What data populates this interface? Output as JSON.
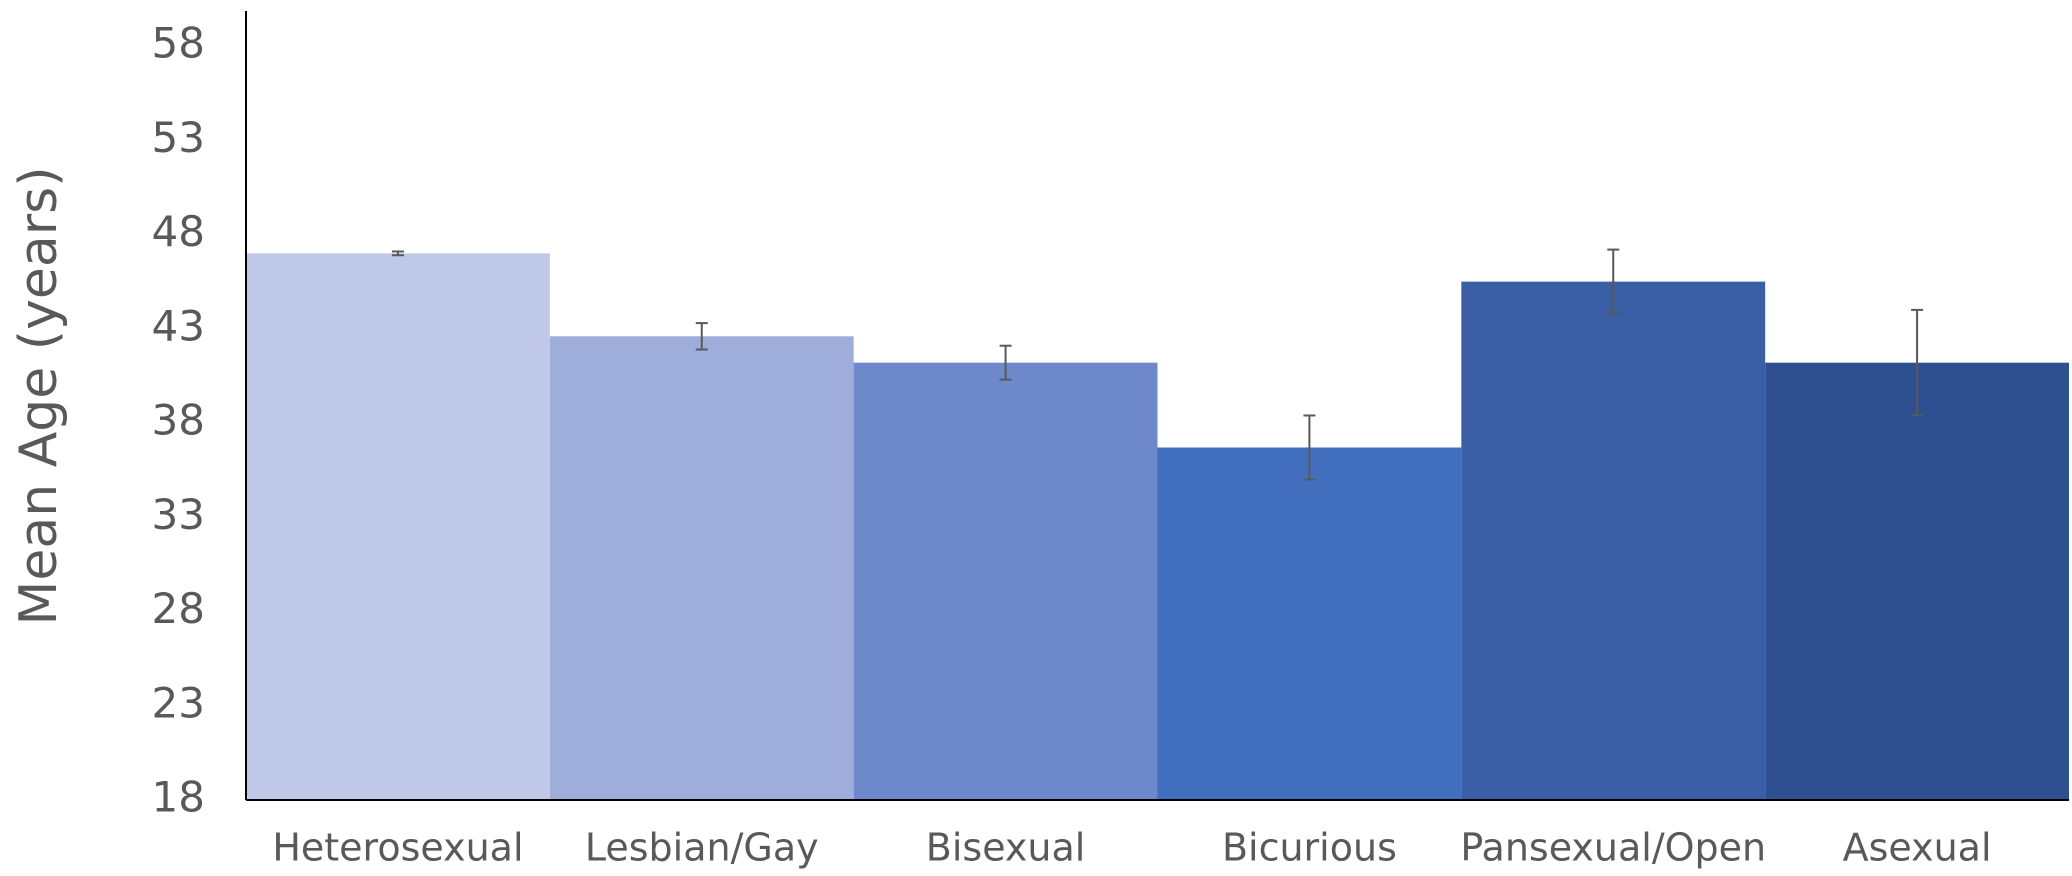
{
  "chart_data": {
    "type": "bar",
    "y_label": "Mean Age (years)",
    "categories": [
      "Heterosexual",
      "Lesbian/Gay",
      "Bisexual",
      "Bicurious",
      "Pansexual/Open",
      "Asexual"
    ],
    "values": [
      47.0,
      42.6,
      41.2,
      36.7,
      45.5,
      41.2
    ],
    "errors": [
      0.1,
      0.7,
      0.9,
      1.7,
      1.7,
      2.8
    ],
    "colors": [
      "#bfc8e6",
      "#9eadd9",
      "#6d88cb",
      "#416fbd",
      "#3a5fa6",
      "#2f5090"
    ],
    "ylim": [
      18,
      58
    ],
    "yticks": [
      18,
      23,
      28,
      33,
      38,
      43,
      48,
      53,
      58
    ],
    "grid": false
  }
}
